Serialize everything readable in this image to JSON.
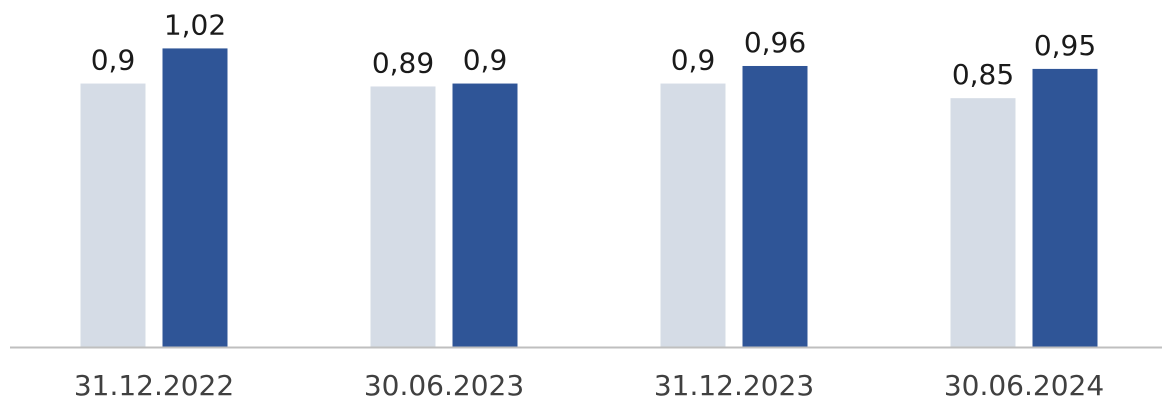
{
  "chart_data": {
    "type": "bar",
    "categories": [
      "31.12.2022",
      "30.06.2023",
      "31.12.2023",
      "30.06.2024"
    ],
    "series": [
      {
        "values": [
          0.9,
          0.89,
          0.9,
          0.85
        ],
        "color": "#d5dce6"
      },
      {
        "values": [
          1.02,
          0.9,
          0.96,
          0.95
        ],
        "color": "#2f5597"
      }
    ],
    "data_labels": [
      [
        "0,9",
        "0,89",
        "0,9",
        "0,85"
      ],
      [
        "1,02",
        "0,9",
        "0,96",
        "0,95"
      ]
    ],
    "ylim": [
      0,
      1.1
    ],
    "grid": false,
    "legend": "none",
    "axis_color": "#bfbfbf"
  }
}
